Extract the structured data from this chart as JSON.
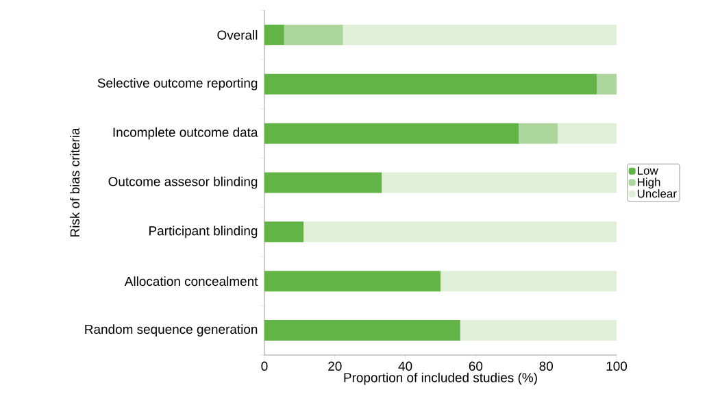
{
  "chart_data": {
    "type": "bar",
    "orientation": "horizontal",
    "stacked": true,
    "xlabel": "Proportion of included studies (%)",
    "ylabel": "Risk of bias criteria",
    "categories": [
      "Overall",
      "Selective outcome reporting",
      "Incomplete outcome data",
      "Outcome assesor blinding",
      "Participant blinding",
      "Allocation concealment",
      "Random sequence generation"
    ],
    "series": [
      {
        "name": "Low",
        "color": "#62b446",
        "values": [
          5.6,
          94.4,
          72.2,
          33.3,
          11.1,
          50,
          55.6
        ]
      },
      {
        "name": "High",
        "color": "#acd69c",
        "values": [
          16.7,
          5.6,
          11.1,
          0,
          0,
          0,
          0
        ]
      },
      {
        "name": "Unclear",
        "color": "#e0f0d8",
        "values": [
          77.7,
          0,
          16.7,
          66.7,
          88.9,
          50,
          44.4
        ]
      }
    ],
    "xlim": [
      0,
      100
    ],
    "xticks": [
      0,
      20,
      40,
      60,
      80,
      100
    ],
    "legend": "right"
  }
}
